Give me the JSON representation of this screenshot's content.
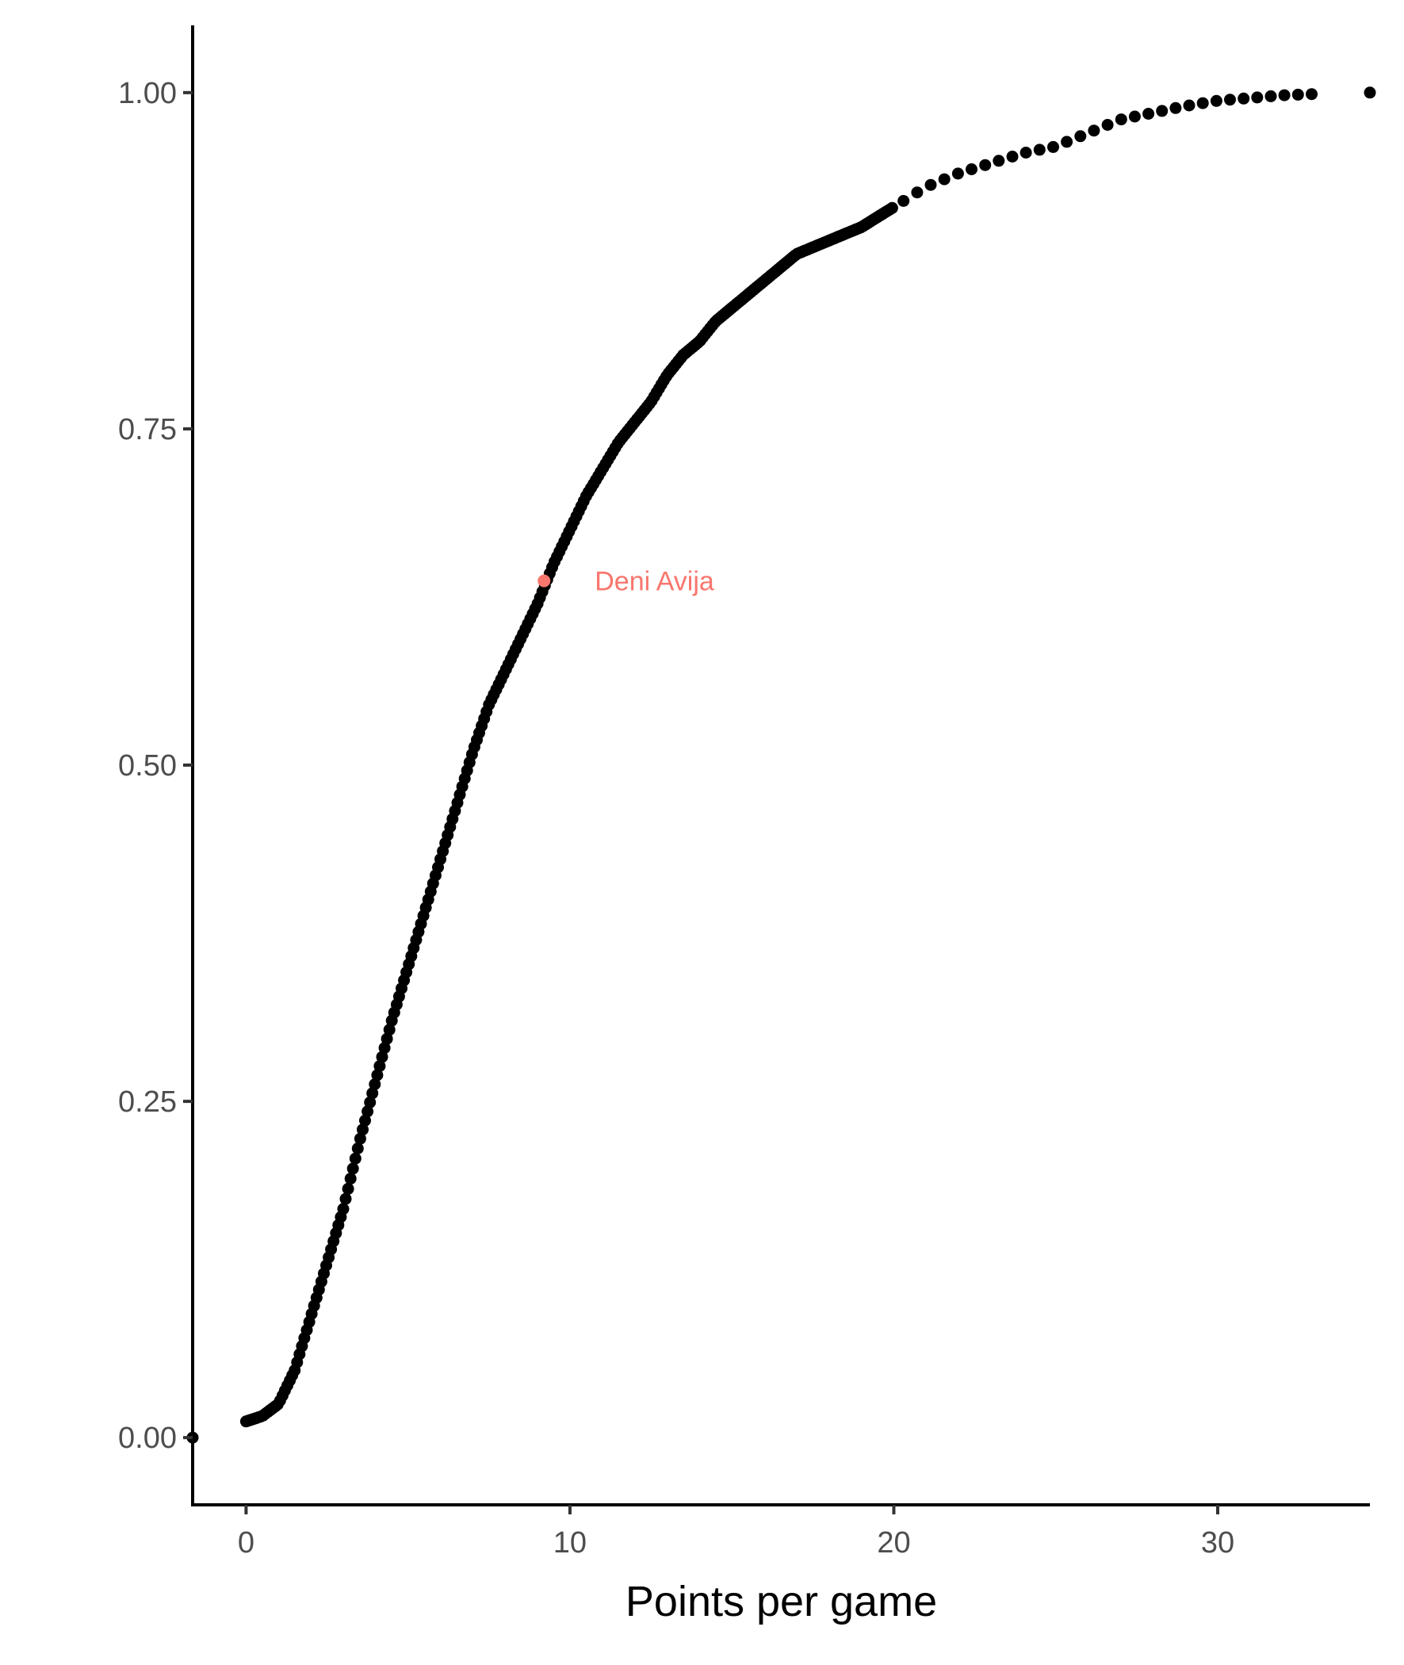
{
  "chart_data": {
    "type": "scatter",
    "title": "",
    "xlabel": "Points per game",
    "ylabel": "",
    "xlim": [
      -1.65,
      34.7
    ],
    "ylim": [
      -0.05,
      1.05
    ],
    "x_ticks": [
      0,
      10,
      20,
      30
    ],
    "x_tick_labels": [
      "0",
      "10",
      "20",
      "30"
    ],
    "y_ticks": [
      0,
      0.25,
      0.5,
      0.75,
      1
    ],
    "y_tick_labels": [
      "0.00",
      "0.25",
      "0.50",
      "0.75",
      "1.00"
    ],
    "grid": false,
    "legend": "none",
    "point_color": "#000000",
    "highlight_color": "#F8766D",
    "anchors": [
      [
        0.0,
        0.012
      ],
      [
        0.5,
        0.016
      ],
      [
        1.0,
        0.025
      ],
      [
        1.5,
        0.05
      ],
      [
        2.0,
        0.09
      ],
      [
        2.5,
        0.13
      ],
      [
        3.0,
        0.17
      ],
      [
        3.5,
        0.22
      ],
      [
        4.0,
        0.265
      ],
      [
        4.5,
        0.31
      ],
      [
        5.0,
        0.35
      ],
      [
        5.5,
        0.39
      ],
      [
        6.0,
        0.43
      ],
      [
        6.5,
        0.47
      ],
      [
        7.0,
        0.51
      ],
      [
        7.5,
        0.545
      ],
      [
        8.0,
        0.57
      ],
      [
        8.5,
        0.595
      ],
      [
        9.0,
        0.62
      ],
      [
        9.5,
        0.65
      ],
      [
        10.0,
        0.675
      ],
      [
        10.5,
        0.7
      ],
      [
        11.0,
        0.72
      ],
      [
        11.5,
        0.74
      ],
      [
        12.0,
        0.755
      ],
      [
        12.5,
        0.77
      ],
      [
        13.0,
        0.79
      ],
      [
        13.5,
        0.805
      ],
      [
        14.0,
        0.815
      ],
      [
        14.5,
        0.83
      ],
      [
        15.0,
        0.84
      ],
      [
        15.5,
        0.85
      ],
      [
        16.0,
        0.86
      ],
      [
        16.5,
        0.87
      ],
      [
        17.0,
        0.88
      ],
      [
        18.0,
        0.89
      ],
      [
        19.0,
        0.9
      ],
      [
        20.0,
        0.915
      ],
      [
        21.0,
        0.93
      ],
      [
        22.0,
        0.94
      ],
      [
        24.0,
        0.955
      ],
      [
        25.0,
        0.96
      ],
      [
        26.0,
        0.97
      ],
      [
        27.0,
        0.98
      ],
      [
        28.0,
        0.985
      ],
      [
        29.0,
        0.99
      ],
      [
        30.0,
        0.994
      ],
      [
        31.0,
        0.996
      ],
      [
        32.0,
        0.998
      ],
      [
        33.0,
        0.999
      ],
      [
        34.7,
        1.0
      ]
    ],
    "outliers": [
      [
        -1.65,
        0.0
      ]
    ],
    "highlight": {
      "label": "Deni Avija",
      "x": 9.2,
      "y": 0.637
    }
  }
}
